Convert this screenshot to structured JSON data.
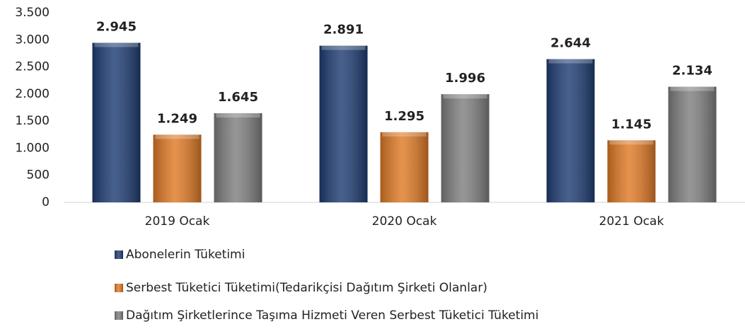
{
  "chart_data": {
    "type": "bar",
    "categories": [
      "2019 Ocak",
      "2020 Ocak",
      "2021 Ocak"
    ],
    "series": [
      {
        "name": "Abonelerin Tüketimi",
        "color": "#1f3d73",
        "values": [
          2945,
          2891,
          2644
        ],
        "value_labels": [
          "2.945",
          "2.891",
          "2.644"
        ]
      },
      {
        "name": "Serbest Tüketici Tüketimi(Tedarikçisi Dağıtım Şirketi Olanlar)",
        "color": "#e07a26",
        "values": [
          1249,
          1295,
          1145
        ],
        "value_labels": [
          "1.249",
          "1.295",
          "1.145"
        ]
      },
      {
        "name": "Dağıtım Şirketlerince Taşıma Hizmeti Veren Serbest Tüketici Tüketimi",
        "color": "#7f7f7f",
        "values": [
          1645,
          1996,
          2134
        ],
        "value_labels": [
          "1.645",
          "1.996",
          "2.134"
        ]
      }
    ],
    "ylim": [
      0,
      3500
    ],
    "yticks": [
      0,
      500,
      {
        "value": 1000,
        "label": "1.000"
      },
      {
        "value": 1500,
        "label": "1.500"
      },
      {
        "value": 2000,
        "label": "2.000"
      },
      {
        "value": 2500,
        "label": "2.500"
      },
      {
        "value": 3000,
        "label": "3.000"
      },
      {
        "value": 3500,
        "label": "3.500"
      }
    ],
    "legend": "bottom"
  }
}
